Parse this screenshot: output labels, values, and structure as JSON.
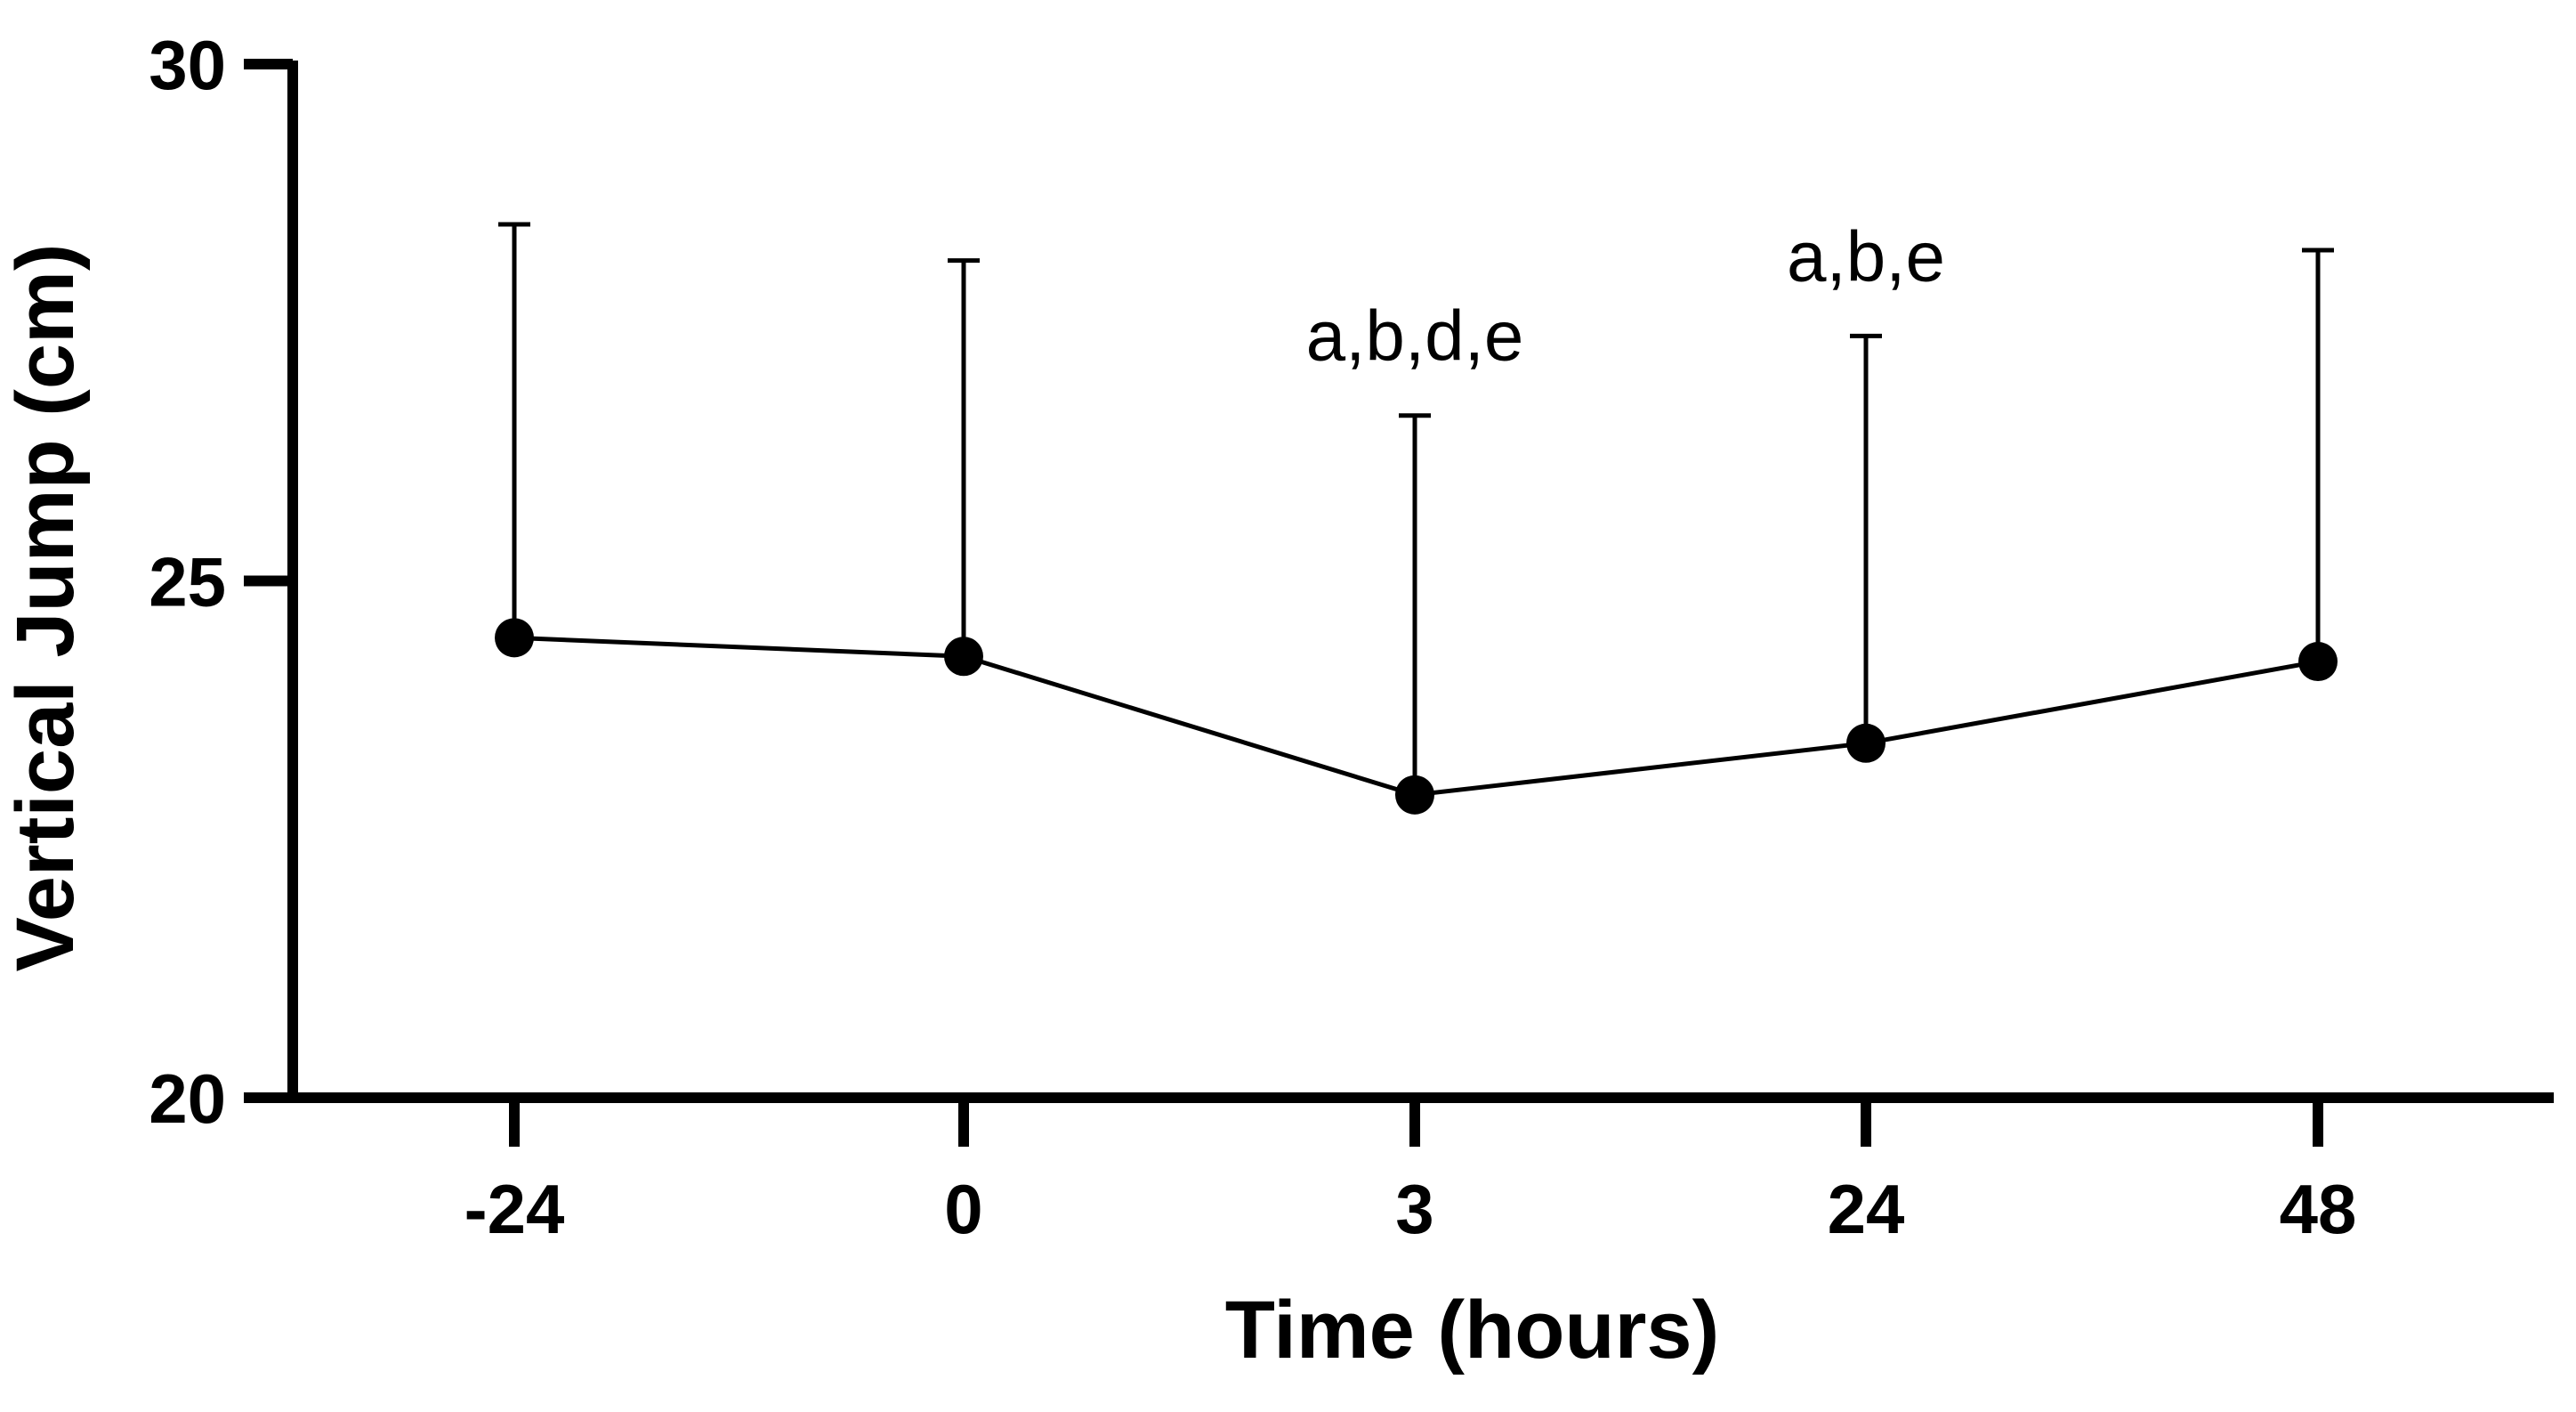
{
  "chart_data": {
    "type": "line",
    "xlabel": "Time (hours)",
    "ylabel": "Vertical Jump (cm)",
    "categories": [
      "-24",
      "0",
      "3",
      "24",
      "48"
    ],
    "y_ticks": [
      "20",
      "25",
      "30"
    ],
    "ylim": [
      20,
      30
    ],
    "grid": false,
    "legend": "none",
    "series": [
      {
        "values": [
          24.45,
          24.27,
          22.93,
          23.43,
          24.22
        ],
        "error_upper": [
          28.45,
          28.1,
          26.6,
          27.37,
          28.2
        ]
      }
    ],
    "annotations": [
      {
        "category": "3",
        "text": "a,b,d,e"
      },
      {
        "category": "24",
        "text": "a,b,e"
      }
    ],
    "colors": {
      "line": "#000000",
      "marker": "#000000"
    }
  }
}
